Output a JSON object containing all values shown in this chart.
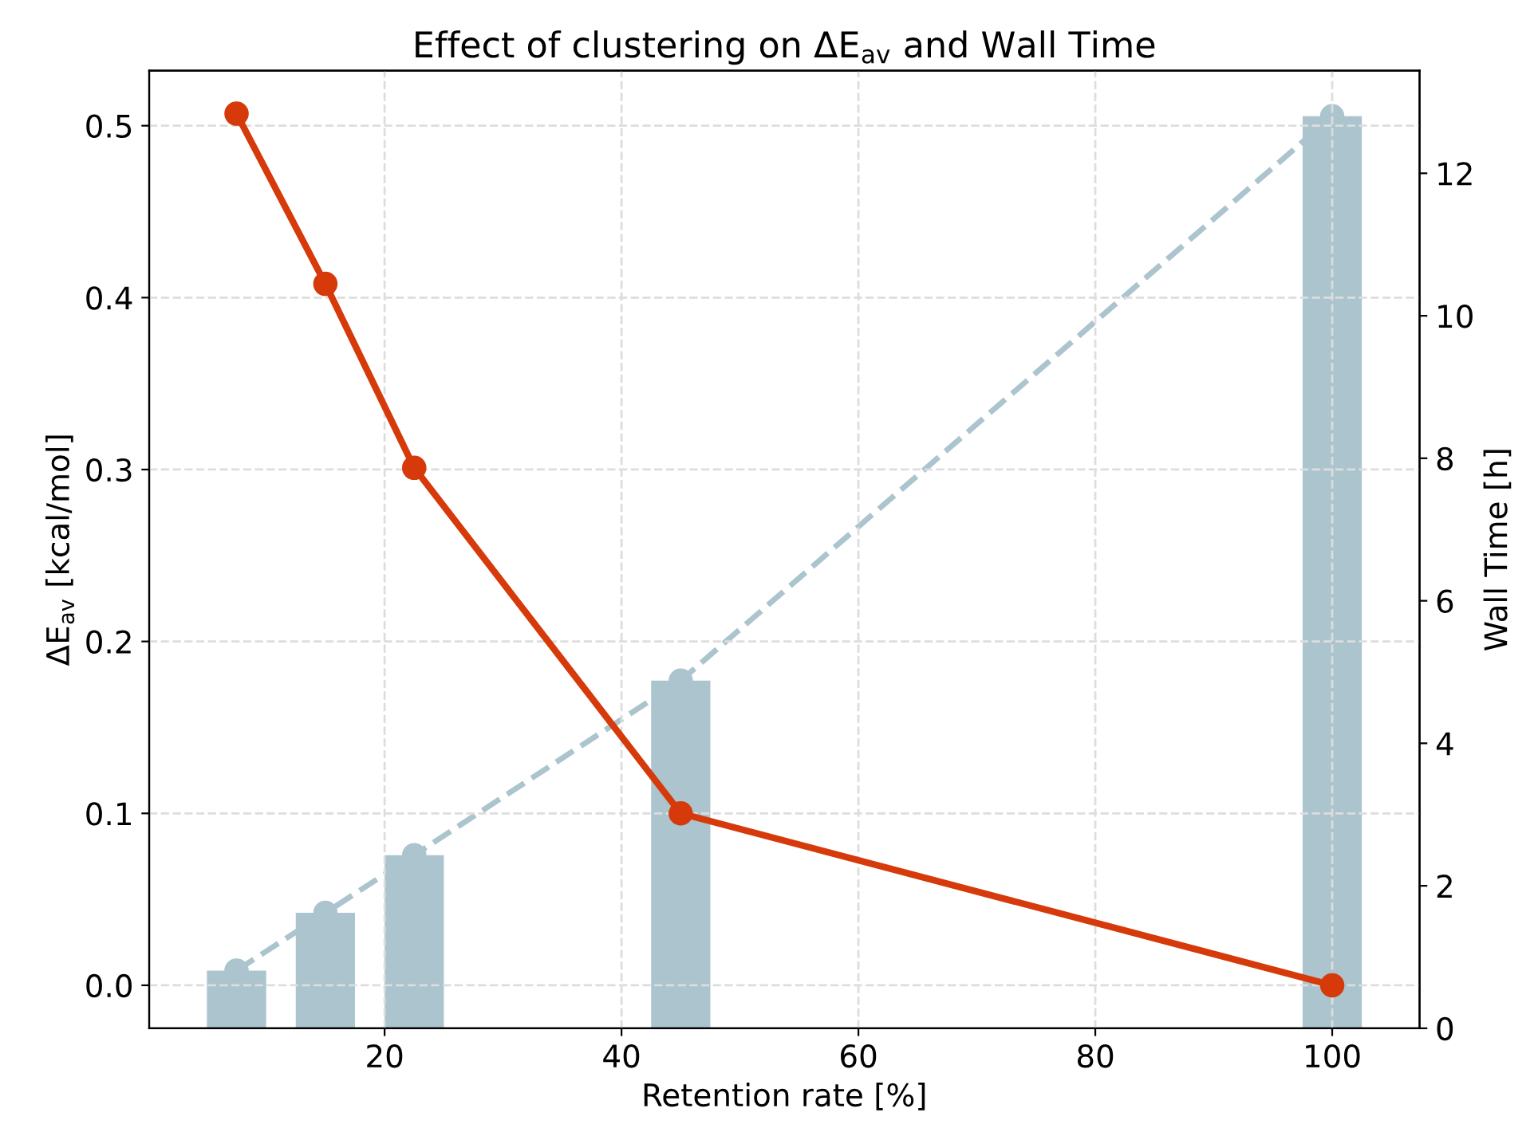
{
  "chart_data": {
    "type": "line",
    "title": "Effect of clustering on ΔE$_{av}$ and Wall Time",
    "xlabel": "Retention rate [%]",
    "ylabel": "ΔE$_{av}$ [kcal/mol]",
    "y2label": "Wall Time [h]",
    "x": [
      7.5,
      15,
      22.5,
      45,
      100
    ],
    "series": [
      {
        "type": "bar",
        "axis": "y2",
        "color": "#abc4ce",
        "values": [
          0.81,
          1.62,
          2.43,
          4.88,
          12.8
        ]
      },
      {
        "axis": "y2",
        "color": "#abc4ce",
        "line_style": "dashed",
        "marker": "circle",
        "values": [
          0.81,
          1.62,
          2.43,
          4.88,
          12.8
        ]
      },
      {
        "axis": "y",
        "color": "#d63a0a",
        "line_style": "solid",
        "marker": "circle",
        "values": [
          0.507,
          0.408,
          0.301,
          0.1,
          0.0
        ]
      }
    ],
    "xlim": [
      0.125,
      107.375
    ],
    "xticks": [
      20,
      40,
      60,
      80,
      100
    ],
    "ylim": [
      -0.025,
      0.532
    ],
    "yticks": [
      {
        "value": 0,
        "label": "0.0"
      },
      0.1,
      0.2,
      0.3,
      0.4,
      0.5
    ],
    "y2lim": [
      0,
      13.44
    ],
    "y2ticks": [
      0,
      2,
      4,
      6,
      8,
      10,
      12
    ],
    "grid": true
  }
}
